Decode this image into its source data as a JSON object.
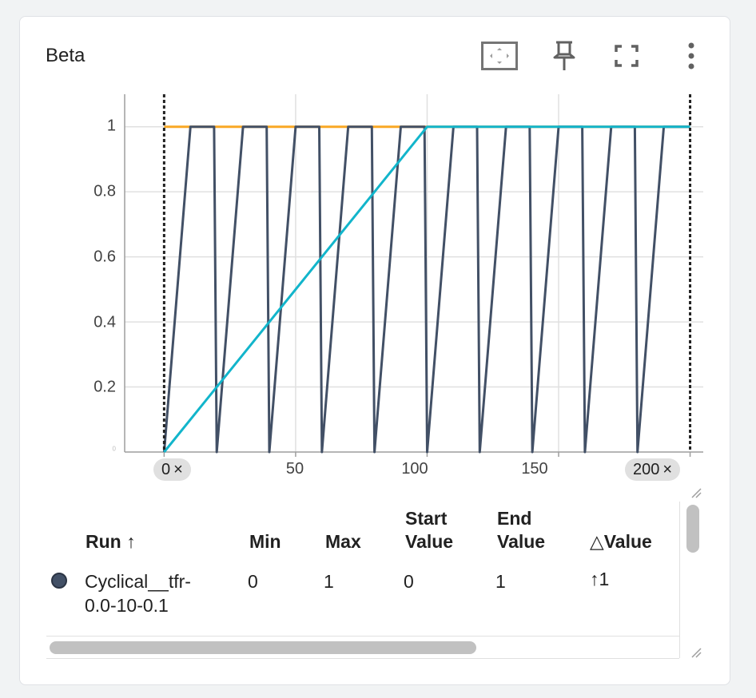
{
  "card": {
    "title": "Beta",
    "toolbar": {
      "fit_icon": "fit-domain-icon",
      "pin_icon": "pin-icon",
      "fullscreen_icon": "fullscreen-icon",
      "menu_icon": "more-vert-icon"
    }
  },
  "chart_data": {
    "type": "line",
    "title": "Beta",
    "xlabel": "",
    "ylabel": "",
    "xlim": [
      -15,
      205
    ],
    "ylim": [
      0,
      1.1
    ],
    "x_ticks": [
      "50",
      "100",
      "150"
    ],
    "y_ticks": [
      "0.2",
      "0.4",
      "0.6",
      "0.8",
      "1"
    ],
    "y_zero_tick": "0",
    "grid": true,
    "range_markers": [
      {
        "label": "0",
        "close": "×",
        "x": 0
      },
      {
        "label": "200",
        "close": "×",
        "x": 200
      }
    ],
    "series": [
      {
        "color": "#f9a825",
        "x": [
          0,
          100,
          200
        ],
        "y": [
          1,
          1,
          1
        ]
      },
      {
        "color": "#425066",
        "x": [
          0,
          10,
          19,
          20,
          30,
          39,
          40,
          50,
          59,
          60,
          70,
          79,
          80,
          90,
          99,
          100,
          110,
          119,
          120,
          130,
          139,
          140,
          150,
          159,
          160,
          170,
          179,
          180,
          190,
          199,
          200
        ],
        "y": [
          0,
          1,
          1,
          0,
          1,
          1,
          0,
          1,
          1,
          0,
          1,
          1,
          0,
          1,
          1,
          0,
          1,
          1,
          0,
          1,
          1,
          0,
          1,
          1,
          0,
          1,
          1,
          0,
          1,
          1,
          1
        ]
      },
      {
        "color": "#12b5cb",
        "x": [
          0,
          100,
          200
        ],
        "y": [
          0,
          1,
          1
        ]
      }
    ]
  },
  "table": {
    "headers": {
      "run": "Run",
      "run_sort": "↑",
      "min": "Min",
      "max": "Max",
      "start_value_1": "Start",
      "start_value_2": "Value",
      "end_value_1": "End",
      "end_value_2": "Value",
      "delta_value_symbol": "△",
      "delta_value": "Value"
    },
    "rows": [
      {
        "run_line1": "Cyclical__tfr-",
        "run_line2": "0.0-10-0.1",
        "color": "#425066",
        "min": "0",
        "max": "1",
        "start_value": "0",
        "end_value": "1",
        "delta_arrow": "↑",
        "delta_value": "1"
      }
    ]
  }
}
